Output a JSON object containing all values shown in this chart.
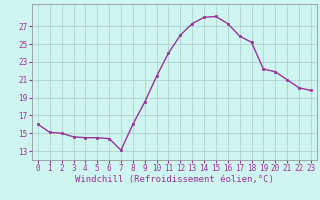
{
  "x": [
    0,
    1,
    2,
    3,
    4,
    5,
    6,
    7,
    8,
    9,
    10,
    11,
    12,
    13,
    14,
    15,
    16,
    17,
    18,
    19,
    20,
    21,
    22,
    23
  ],
  "y": [
    16.0,
    15.1,
    15.0,
    14.6,
    14.5,
    14.5,
    14.4,
    13.1,
    16.0,
    18.5,
    21.4,
    24.0,
    26.0,
    27.3,
    28.0,
    28.1,
    27.3,
    25.9,
    25.2,
    22.2,
    21.9,
    21.0,
    20.1,
    19.8
  ],
  "line_color": "#993399",
  "marker": "s",
  "markersize": 2,
  "linewidth": 1.0,
  "background_color": "#cff5f0",
  "grid_color": "#aacccc",
  "xlabel": "Windchill (Refroidissement éolien,°C)",
  "xlabel_fontsize": 6.5,
  "yticks": [
    13,
    15,
    17,
    19,
    21,
    23,
    25,
    27
  ],
  "ylim": [
    12.0,
    29.5
  ],
  "xlim": [
    -0.5,
    23.5
  ],
  "xtick_labels": [
    "0",
    "1",
    "2",
    "3",
    "4",
    "5",
    "6",
    "7",
    "8",
    "9",
    "10",
    "11",
    "12",
    "13",
    "14",
    "15",
    "16",
    "17",
    "18",
    "19",
    "20",
    "21",
    "22",
    "23"
  ],
  "tick_fontsize": 5.5,
  "tick_color": "#993399",
  "label_color": "#993399"
}
